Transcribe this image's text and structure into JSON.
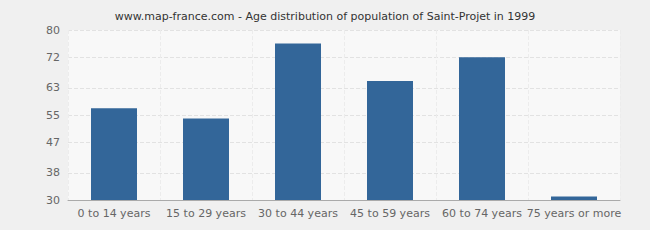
{
  "chart_data": {
    "type": "bar",
    "title": "www.map-france.com - Age distribution of population of Saint-Projet in 1999",
    "categories": [
      "0 to 14 years",
      "15 to 29 years",
      "30 to 44 years",
      "45 to 59 years",
      "60 to 74 years",
      "75 years or more"
    ],
    "values": [
      57,
      54,
      76,
      65,
      72,
      31
    ],
    "color": "#336699",
    "ylim": [
      30,
      80
    ],
    "yticks": [
      30,
      38,
      47,
      55,
      63,
      72,
      80
    ],
    "grid": true
  }
}
